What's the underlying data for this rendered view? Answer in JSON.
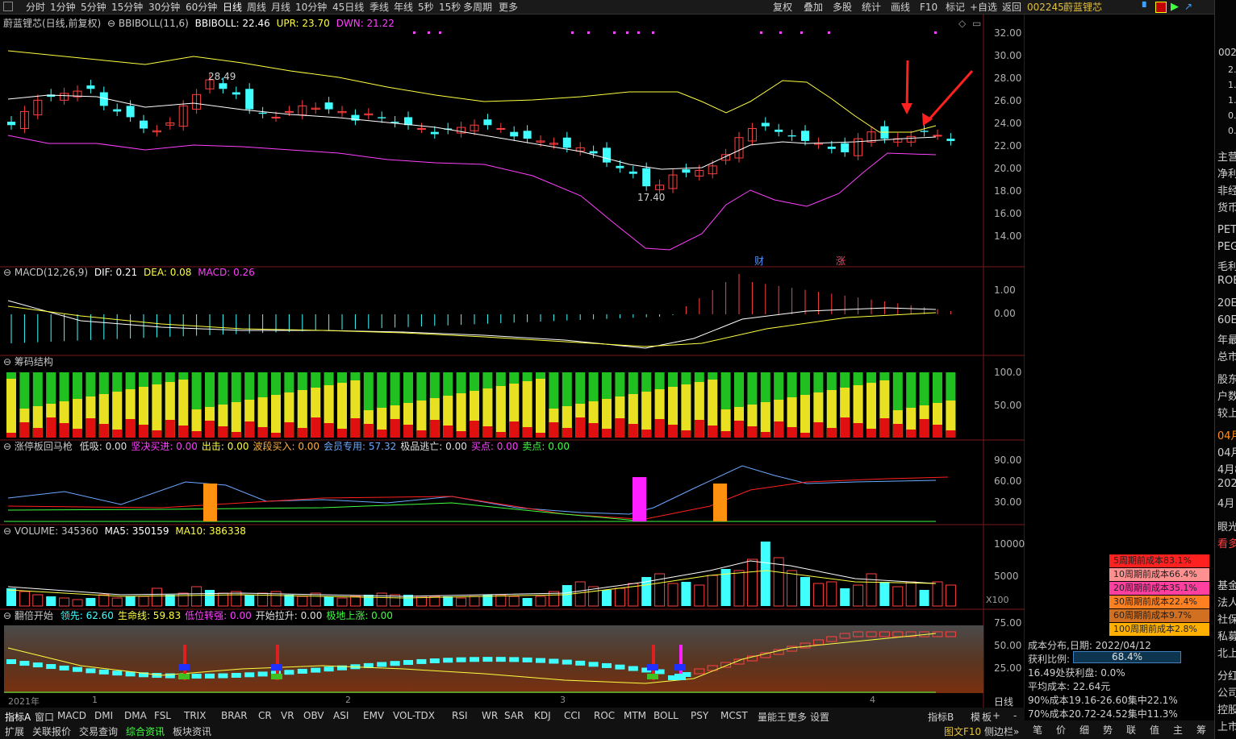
{
  "toolbar": {
    "periods": [
      "分时",
      "1分钟",
      "5分钟",
      "15分钟",
      "30分钟",
      "60分钟",
      "日线",
      "周线",
      "月线",
      "10分钟",
      "45日线",
      "季线",
      "年线",
      "5秒",
      "15秒",
      "多周期",
      "更多"
    ],
    "active_period": "日线",
    "right_buttons": [
      "复权",
      "叠加",
      "多股",
      "统计",
      "画线",
      "F10",
      "标记",
      "+自选",
      "返回"
    ]
  },
  "stock": {
    "code": "002245",
    "name": "蔚蓝锂芯"
  },
  "main_panel": {
    "title": "蔚蓝锂芯(日线,前复权)",
    "indicator": "BBIBOLL(11,6)",
    "bbiboll_label": "BBIBOLL: 22.46",
    "upr_label": "UPR: 23.70",
    "dwn_label": "DWN: 21.22",
    "high_label": "28.49",
    "low_label": "17.40",
    "mark_cai": "财",
    "mark_zhang": "涨",
    "yaxis": [
      "32.00",
      "30.00",
      "28.00",
      "26.00",
      "24.00",
      "22.00",
      "20.00",
      "18.00",
      "16.00",
      "14.00"
    ]
  },
  "macd_panel": {
    "title": "MACD(12,26,9)",
    "dif": "DIF: 0.21",
    "dea": "DEA: 0.08",
    "macd": "MACD: 0.26",
    "yaxis": [
      "1.00",
      "0.00"
    ]
  },
  "chip_panel": {
    "title": "筹码结构",
    "yaxis": [
      "100.0",
      "50.00"
    ]
  },
  "zt_panel": {
    "title": "涨停板回马枪",
    "items": [
      {
        "text": "低吸: 0.00",
        "color": "#e0e0e0"
      },
      {
        "text": "坚决买进: 0.00",
        "color": "#ff40ff"
      },
      {
        "text": "出击: 0.00",
        "color": "#ffff40"
      },
      {
        "text": "波段买入: 0.00",
        "color": "#ffb040"
      },
      {
        "text": "会员专用: 57.32",
        "color": "#6aa8ff"
      },
      {
        "text": "极品逃亡: 0.00",
        "color": "#e0e0e0"
      },
      {
        "text": "买点: 0.00",
        "color": "#ff40ff"
      },
      {
        "text": "卖点: 0.00",
        "color": "#40ff40"
      }
    ],
    "yaxis": [
      "90.00",
      "60.00",
      "30.00"
    ]
  },
  "volume_panel": {
    "title": "VOLUME: 345360",
    "ma5": "MA5: 350159",
    "ma10": "MA10: 386338",
    "yaxis": [
      "10000",
      "5000"
    ],
    "unit": "X100"
  },
  "fb_panel": {
    "title": "翻倍开始",
    "items": [
      {
        "text": "领先: 62.60",
        "color": "#40ffff"
      },
      {
        "text": "生命线: 59.83",
        "color": "#ffff40"
      },
      {
        "text": "低位转强: 0.00",
        "color": "#ff40ff"
      },
      {
        "text": "开始拉升: 0.00",
        "color": "#e0e0e0"
      },
      {
        "text": "极地上涨: 0.00",
        "color": "#40ff40"
      }
    ],
    "yaxis": [
      "75.00",
      "50.00",
      "25.00"
    ]
  },
  "xaxis": {
    "labels": [
      "2021年",
      "1",
      "2",
      "3",
      "4"
    ],
    "period": "日线"
  },
  "bottom_tabs": [
    "指标A",
    "窗口",
    "MACD",
    "DMI",
    "DMA",
    "FSL",
    "TRIX",
    "BRAR",
    "CR",
    "VR",
    "OBV",
    "ASI",
    "EMV",
    "VOL-TDX",
    "RSI",
    "WR",
    "SAR",
    "KDJ",
    "CCI",
    "ROC",
    "MTM",
    "BOLL",
    "PSY",
    "MCST",
    "量能王",
    "更多",
    "设置"
  ],
  "bottom_right_tabs": [
    "指标B",
    "模",
    "板",
    "+",
    "-"
  ],
  "bottom_tabs2": [
    "扩展",
    "关联报价",
    "交易查询",
    "综合资讯",
    "板块资讯"
  ],
  "chip_dist": {
    "rows": [
      {
        "text": "5周期前成本83.1%",
        "color": "#ff2020"
      },
      {
        "text": "10周期前成本66.4%",
        "color": "#ff9090"
      },
      {
        "text": "20周期前成本35.1%",
        "color": "#ff40a0"
      },
      {
        "text": "30周期前成本22.4%",
        "color": "#ff8020"
      },
      {
        "text": "60周期前成本9.7%",
        "color": "#d07020"
      },
      {
        "text": "100周期前成本2.8%",
        "color": "#ffb000"
      }
    ],
    "date_label": "成本分布,日期: 2022/04/12",
    "profit_label": "获利比例:",
    "profit_value": "68.4%",
    "profit_curve": "16.49处获利盘: 0.0%",
    "avg_cost": "平均成本: 22.64元",
    "cost90": "90%成本19.16-26.60集中22.1%",
    "cost70": "70%成本20.72-24.52集中11.3%"
  },
  "side_status": {
    "left": "图文F10",
    "right": "侧边栏»"
  },
  "right_tabs": [
    "笔",
    "价",
    "细",
    "势",
    "联",
    "值",
    "主",
    "筹"
  ],
  "far_right": {
    "code_fragment": "002",
    "nums": [
      "2.",
      "1.",
      "1.",
      "0.",
      "0."
    ],
    "labels1": [
      "主营",
      "净利",
      "非经",
      "货币"
    ],
    "labels2": [
      "PET",
      "PEG",
      "毛利",
      "ROE"
    ],
    "labels3": [
      "20E",
      "60E",
      "年最",
      "总市"
    ],
    "labels4": [
      "股东",
      "户数",
      "较上"
    ],
    "labels5": [
      "04月",
      "04月",
      "4月8",
      "202",
      "4月"
    ],
    "labels6": [
      "眼光",
      "看多"
    ],
    "labels7": [
      "基金",
      "法人",
      "社保",
      "私募",
      "北上"
    ],
    "labels8": [
      "分红",
      "公司",
      "控股",
      "上市"
    ]
  }
}
